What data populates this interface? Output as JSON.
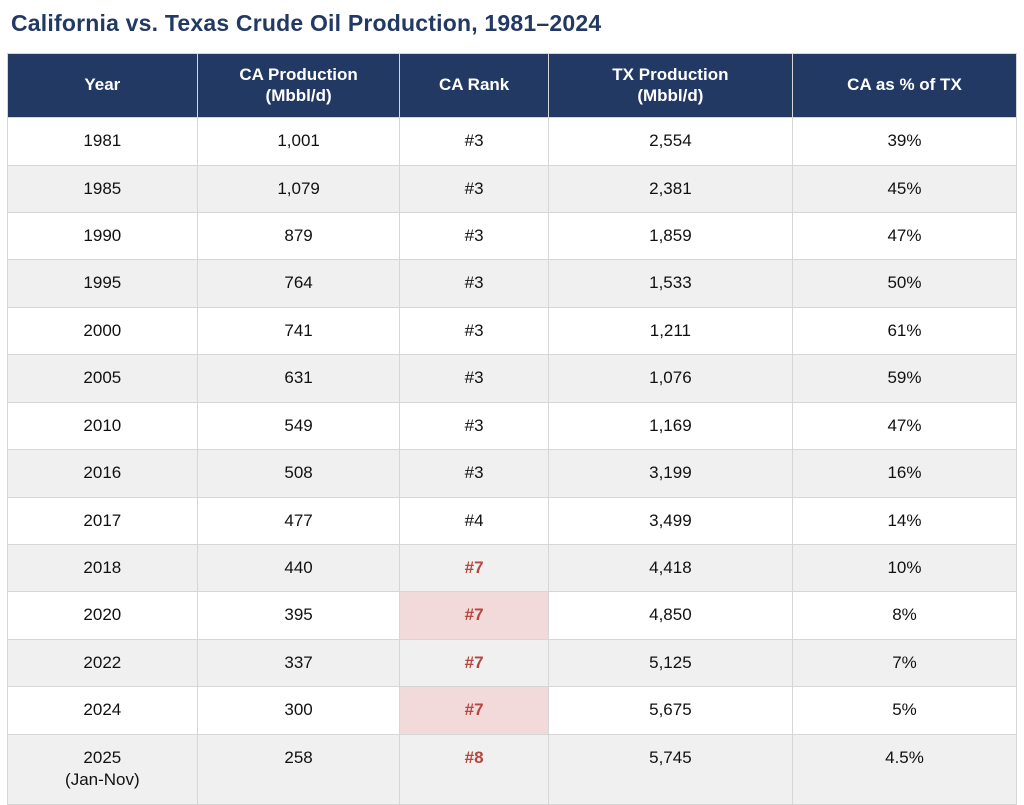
{
  "title": "California vs. Texas Crude Oil Production, 1981–2024",
  "colors": {
    "title_text": "#223964",
    "header_bg": "#223964",
    "header_text": "#ffffff",
    "alt_row_bg": "#f0f0f0",
    "border": "#d6d6d6",
    "rank_highlight_bg": "#f3dada",
    "rank_highlight_text": "#b5473f"
  },
  "chart_data": {
    "type": "table",
    "title": "California vs. Texas Crude Oil Production, 1981–2024",
    "columns": [
      {
        "label": "Year",
        "sub": ""
      },
      {
        "label": "CA Production",
        "sub": "(Mbbl/d)"
      },
      {
        "label": "CA Rank",
        "sub": ""
      },
      {
        "label": "TX Production",
        "sub": "(Mbbl/d)"
      },
      {
        "label": "CA as % of TX",
        "sub": ""
      }
    ],
    "rows": [
      {
        "year": "1981",
        "year_note": "",
        "ca": "1,001",
        "rank": "#3",
        "rank_highlight": false,
        "tx": "2,554",
        "pct": "39%"
      },
      {
        "year": "1985",
        "year_note": "",
        "ca": "1,079",
        "rank": "#3",
        "rank_highlight": false,
        "tx": "2,381",
        "pct": "45%"
      },
      {
        "year": "1990",
        "year_note": "",
        "ca": "879",
        "rank": "#3",
        "rank_highlight": false,
        "tx": "1,859",
        "pct": "47%"
      },
      {
        "year": "1995",
        "year_note": "",
        "ca": "764",
        "rank": "#3",
        "rank_highlight": false,
        "tx": "1,533",
        "pct": "50%"
      },
      {
        "year": "2000",
        "year_note": "",
        "ca": "741",
        "rank": "#3",
        "rank_highlight": false,
        "tx": "1,211",
        "pct": "61%"
      },
      {
        "year": "2005",
        "year_note": "",
        "ca": "631",
        "rank": "#3",
        "rank_highlight": false,
        "tx": "1,076",
        "pct": "59%"
      },
      {
        "year": "2010",
        "year_note": "",
        "ca": "549",
        "rank": "#3",
        "rank_highlight": false,
        "tx": "1,169",
        "pct": "47%"
      },
      {
        "year": "2016",
        "year_note": "",
        "ca": "508",
        "rank": "#3",
        "rank_highlight": false,
        "tx": "3,199",
        "pct": "16%"
      },
      {
        "year": "2017",
        "year_note": "",
        "ca": "477",
        "rank": "#4",
        "rank_highlight": false,
        "tx": "3,499",
        "pct": "14%"
      },
      {
        "year": "2018",
        "year_note": "",
        "ca": "440",
        "rank": "#7",
        "rank_highlight": true,
        "tx": "4,418",
        "pct": "10%"
      },
      {
        "year": "2020",
        "year_note": "",
        "ca": "395",
        "rank": "#7",
        "rank_highlight": true,
        "tx": "4,850",
        "pct": "8%"
      },
      {
        "year": "2022",
        "year_note": "",
        "ca": "337",
        "rank": "#7",
        "rank_highlight": true,
        "tx": "5,125",
        "pct": "7%"
      },
      {
        "year": "2024",
        "year_note": "",
        "ca": "300",
        "rank": "#7",
        "rank_highlight": true,
        "tx": "5,675",
        "pct": "5%"
      },
      {
        "year": "2025",
        "year_note": "(Jan-Nov)",
        "ca": "258",
        "rank": "#8",
        "rank_highlight": true,
        "tx": "5,745",
        "pct": "4.5%"
      }
    ]
  }
}
